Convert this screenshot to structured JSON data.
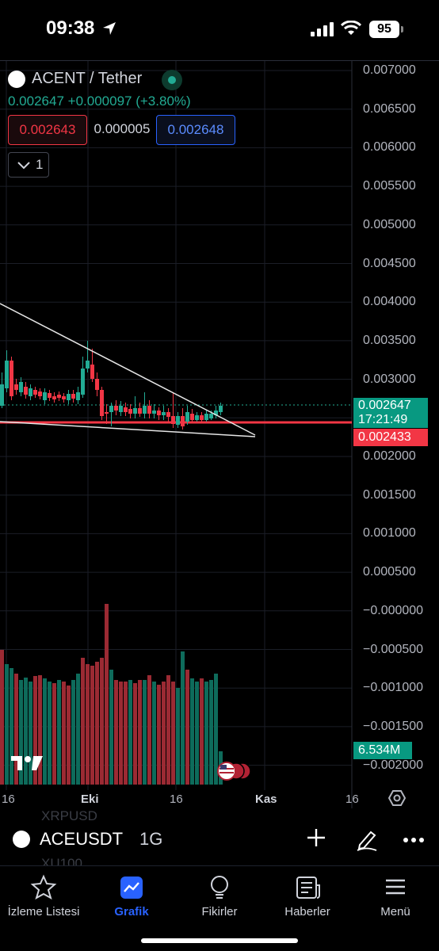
{
  "status_bar": {
    "time": "09:38",
    "battery": "95"
  },
  "chart": {
    "pair_name": "ACENT / Tether",
    "last_price": "0.002647",
    "change": "+0.000097",
    "change_pct": "(+3.80%)",
    "bid": "0.002643",
    "spread": "0.000005",
    "ask": "0.002648",
    "collapse_count": "1",
    "price_axis": [
      "0.007000",
      "0.006500",
      "0.006000",
      "0.005500",
      "0.005000",
      "0.004500",
      "0.004000",
      "0.003500",
      "0.003000",
      "0.002500",
      "0.002000",
      "0.001500",
      "0.001000",
      "0.000500",
      "−0.000000",
      "−0.000500",
      "−0.001000",
      "−0.001500",
      "−0.002000"
    ],
    "current_price_tag": "0.002647",
    "countdown": "17:21:49",
    "line_price_tag": "0.002433",
    "volume_tag": "6.534M",
    "date_axis": [
      "16",
      "Eki",
      "16",
      "Kas",
      "16"
    ],
    "colors": {
      "up": "#22ab94",
      "down": "#f23645",
      "accent": "#2962ff"
    }
  },
  "ghost_symbols": [
    "XRPUSD",
    "XU100"
  ],
  "toolbar": {
    "symbol": "ACEUSDT",
    "interval": "1G",
    "icons": [
      "plus-icon",
      "pencil-icon",
      "more-icon"
    ]
  },
  "tabbar": {
    "items": [
      {
        "label": "İzleme Listesi",
        "icon": "star-icon"
      },
      {
        "label": "Grafik",
        "icon": "chart-icon",
        "active": true
      },
      {
        "label": "Fikirler",
        "icon": "lightbulb-icon"
      },
      {
        "label": "Haberler",
        "icon": "news-icon"
      },
      {
        "label": "Menü",
        "icon": "menu-icon"
      }
    ]
  }
}
